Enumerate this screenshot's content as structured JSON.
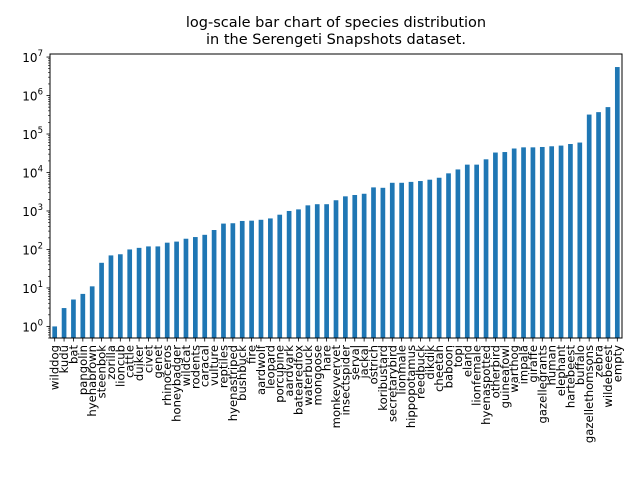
{
  "chart_data": {
    "type": "bar",
    "title_lines": [
      "log-scale bar chart of species distribution",
      "in the Serengeti Snapshots dataset."
    ],
    "xlabel": "",
    "ylabel": "",
    "yscale": "log",
    "ylim": [
      0.5,
      12000000
    ],
    "yticks": [
      {
        "value": 1,
        "base": "10",
        "exp": "0"
      },
      {
        "value": 10,
        "base": "10",
        "exp": "1"
      },
      {
        "value": 100,
        "base": "10",
        "exp": "2"
      },
      {
        "value": 1000,
        "base": "10",
        "exp": "3"
      },
      {
        "value": 10000,
        "base": "10",
        "exp": "4"
      },
      {
        "value": 100000,
        "base": "10",
        "exp": "5"
      },
      {
        "value": 1000000,
        "base": "10",
        "exp": "6"
      },
      {
        "value": 10000000,
        "base": "10",
        "exp": "7"
      }
    ],
    "bar_color": "#1f77b4",
    "grid": false,
    "categories": [
      "wilddog",
      "kudu",
      "bat",
      "pangolin",
      "hyenabrown",
      "steenbok",
      "zorilla",
      "lioncub",
      "cattle",
      "duiker",
      "civet",
      "genet",
      "rhinoceros",
      "honeybadger",
      "wildcat",
      "rodents",
      "caracal",
      "vulture",
      "reptiles",
      "hyenastriped",
      "bushbuck",
      "fire",
      "aardwolf",
      "leopard",
      "porcupine",
      "aardvark",
      "batearedfox",
      "waterbuck",
      "mongoose",
      "hare",
      "monkeyvervet",
      "insectspider",
      "serval",
      "jackal",
      "ostrich",
      "koribustard",
      "secretarybird",
      "lionmale",
      "hippopotamus",
      "reedbuck",
      "dikdik",
      "cheetah",
      "baboon",
      "topi",
      "eland",
      "lionfemale",
      "hyenaspotted",
      "otherbird",
      "guineafowl",
      "warthog",
      "impala",
      "giraffe",
      "gazellegrants",
      "human",
      "elephant",
      "hartebeest",
      "buffalo",
      "gazellethomsons",
      "zebra",
      "wildebeest",
      "empty"
    ],
    "values": [
      1,
      3,
      5,
      7,
      11,
      45,
      70,
      75,
      100,
      110,
      120,
      120,
      150,
      160,
      190,
      210,
      240,
      320,
      470,
      480,
      550,
      560,
      590,
      640,
      800,
      1000,
      1100,
      1400,
      1500,
      1500,
      1900,
      2400,
      2600,
      2800,
      4100,
      4000,
      5400,
      5400,
      5700,
      6000,
      6500,
      7300,
      9500,
      12000,
      16000,
      16000,
      22000,
      33000,
      34000,
      42000,
      45000,
      45000,
      46000,
      48000,
      50000,
      55000,
      60000,
      320000,
      370000,
      500000,
      5500000
    ]
  }
}
